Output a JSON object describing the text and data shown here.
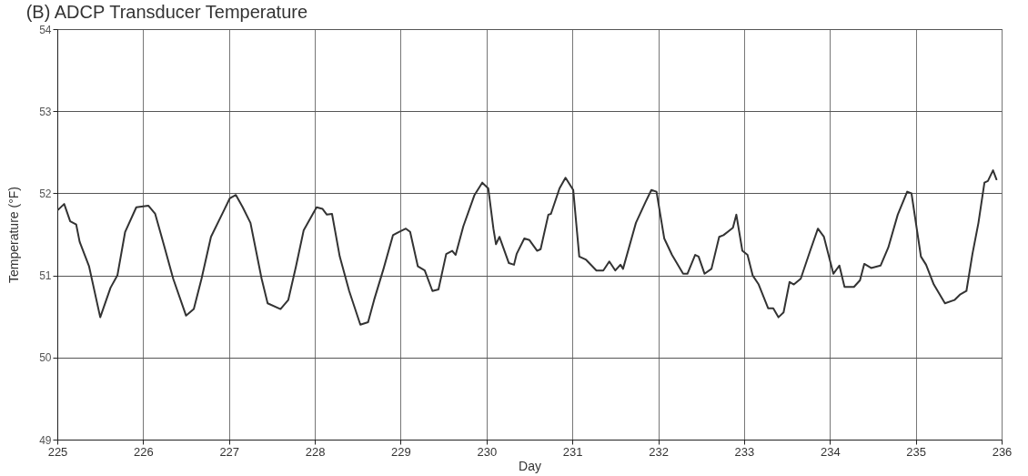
{
  "chart_data": {
    "type": "line",
    "title": "(B)  ADCP Transducer Temperature",
    "xlabel": "Day",
    "ylabel": "Temperature (°F)",
    "xlim": [
      225,
      236
    ],
    "xticks": [
      225,
      226,
      227,
      228,
      229,
      230,
      231,
      232,
      233,
      234,
      235,
      236
    ],
    "ylim": [
      49,
      54
    ],
    "yticks": [
      49,
      50,
      51,
      52,
      53,
      54
    ],
    "grid": true,
    "line_style": "solid",
    "marker": "none",
    "series": [
      {
        "color": "#333333",
        "x": [
          225.0,
          225.08,
          225.15,
          225.22,
          225.26,
          225.37,
          225.5,
          225.62,
          225.7,
          225.79,
          225.92,
          226.06,
          226.14,
          226.25,
          226.35,
          226.5,
          226.59,
          226.68,
          226.79,
          226.94,
          227.01,
          227.08,
          227.16,
          227.25,
          227.38,
          227.45,
          227.6,
          227.69,
          227.78,
          227.87,
          228.02,
          228.09,
          228.14,
          228.2,
          228.29,
          228.4,
          228.53,
          228.62,
          228.69,
          228.8,
          228.91,
          228.98,
          229.06,
          229.11,
          229.2,
          229.28,
          229.37,
          229.44,
          229.53,
          229.6,
          229.64,
          229.73,
          229.86,
          229.95,
          230.02,
          230.08,
          230.11,
          230.15,
          230.26,
          230.32,
          230.35,
          230.44,
          230.5,
          230.59,
          230.63,
          230.72,
          230.75,
          230.85,
          230.92,
          231.01,
          231.08,
          231.16,
          231.28,
          231.36,
          231.43,
          231.5,
          231.56,
          231.59,
          231.74,
          231.85,
          231.92,
          231.98,
          232.07,
          232.16,
          232.29,
          232.34,
          232.43,
          232.47,
          232.54,
          232.62,
          232.71,
          232.76,
          232.87,
          232.91,
          232.98,
          233.04,
          233.1,
          233.17,
          233.28,
          233.34,
          233.4,
          233.46,
          233.53,
          233.58,
          233.66,
          233.77,
          233.86,
          233.93,
          234.04,
          234.11,
          234.17,
          234.28,
          234.35,
          234.4,
          234.48,
          234.59,
          234.68,
          234.79,
          234.9,
          234.95,
          235.06,
          235.12,
          235.21,
          235.34,
          235.45,
          235.52,
          235.59,
          235.66,
          235.73,
          235.8,
          235.84,
          235.9,
          235.94
        ],
        "values": [
          51.79,
          51.87,
          51.66,
          51.62,
          51.41,
          51.11,
          50.49,
          50.85,
          51.0,
          51.53,
          51.83,
          51.85,
          51.75,
          51.34,
          50.96,
          50.51,
          50.59,
          50.96,
          51.47,
          51.79,
          51.94,
          51.98,
          51.83,
          51.64,
          50.96,
          50.66,
          50.59,
          50.7,
          51.11,
          51.55,
          51.83,
          51.81,
          51.74,
          51.75,
          51.23,
          50.81,
          50.4,
          50.43,
          50.7,
          51.08,
          51.49,
          51.53,
          51.57,
          51.53,
          51.11,
          51.06,
          50.81,
          50.83,
          51.26,
          51.3,
          51.25,
          51.6,
          51.98,
          52.13,
          52.06,
          51.57,
          51.38,
          51.47,
          51.15,
          51.13,
          51.26,
          51.45,
          51.43,
          51.3,
          51.32,
          51.74,
          51.75,
          52.06,
          52.19,
          52.04,
          51.23,
          51.19,
          51.06,
          51.06,
          51.17,
          51.06,
          51.13,
          51.08,
          51.64,
          51.89,
          52.04,
          52.02,
          51.45,
          51.25,
          51.02,
          51.02,
          51.25,
          51.23,
          51.02,
          51.08,
          51.47,
          51.49,
          51.58,
          51.74,
          51.3,
          51.25,
          51.0,
          50.89,
          50.6,
          50.6,
          50.49,
          50.55,
          50.92,
          50.89,
          50.96,
          51.3,
          51.57,
          51.47,
          51.02,
          51.12,
          50.86,
          50.86,
          50.94,
          51.14,
          51.09,
          51.12,
          51.34,
          51.74,
          52.02,
          52.0,
          51.23,
          51.13,
          50.89,
          50.66,
          50.7,
          50.77,
          50.81,
          51.26,
          51.64,
          52.13,
          52.15,
          52.28,
          52.17
        ]
      }
    ]
  }
}
